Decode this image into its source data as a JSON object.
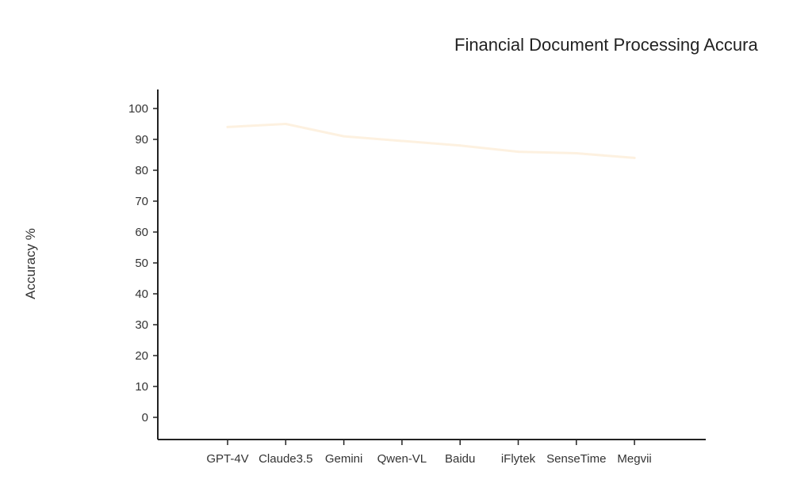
{
  "chart_data": {
    "type": "line",
    "title": "Financial Document Processing Accura",
    "xlabel": "",
    "ylabel": "Accuracy %",
    "categories": [
      "GPT-4V",
      "Claude3.5",
      "Gemini",
      "Qwen-VL",
      "Baidu",
      "iFlytek",
      "SenseTime",
      "Megvii"
    ],
    "series": [
      {
        "values": [
          94,
          95,
          91,
          89.5,
          88,
          86,
          85.5,
          84
        ],
        "color": "#fdf1e0"
      }
    ],
    "ylim": [
      0,
      100
    ],
    "yticks": [
      0,
      10,
      20,
      30,
      40,
      50,
      60,
      70,
      80,
      90,
      100
    ],
    "grid": false,
    "legend": "none"
  }
}
